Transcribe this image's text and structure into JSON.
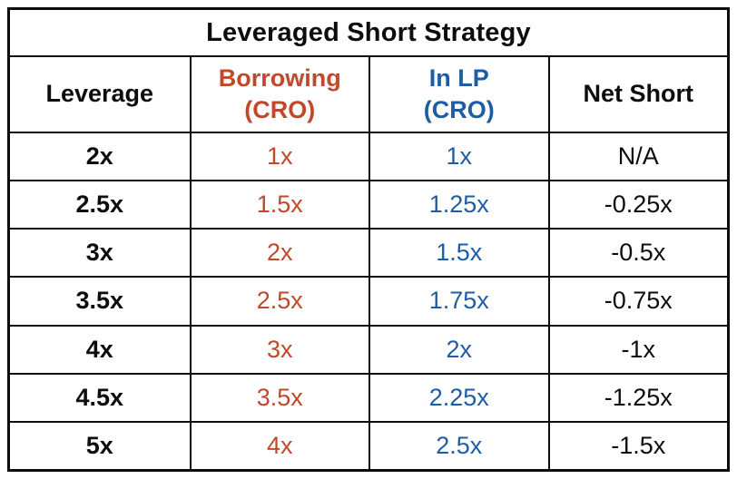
{
  "title": "Leveraged Short Strategy",
  "columns": [
    {
      "label": "Leverage"
    },
    {
      "label": "Borrowing\n(CRO)"
    },
    {
      "label": "In LP\n(CRO)"
    },
    {
      "label": "Net Short"
    }
  ],
  "rows": [
    [
      "2x",
      "1x",
      "1x",
      "N/A"
    ],
    [
      "2.5x",
      "1.5x",
      "1.25x",
      "-0.25x"
    ],
    [
      "3x",
      "2x",
      "1.5x",
      "-0.5x"
    ],
    [
      "3.5x",
      "2.5x",
      "1.75x",
      "-0.75x"
    ],
    [
      "4x",
      "3x",
      "2x",
      "-1x"
    ],
    [
      "4.5x",
      "3.5x",
      "2.25x",
      "-1.25x"
    ],
    [
      "5x",
      "4x",
      "2.5x",
      "-1.5x"
    ]
  ],
  "colors": {
    "border": "#0d0d0d",
    "black": "#0d0d0d",
    "red": "#c0492b",
    "blue": "#1d5da6",
    "bg": "#ffffff"
  }
}
